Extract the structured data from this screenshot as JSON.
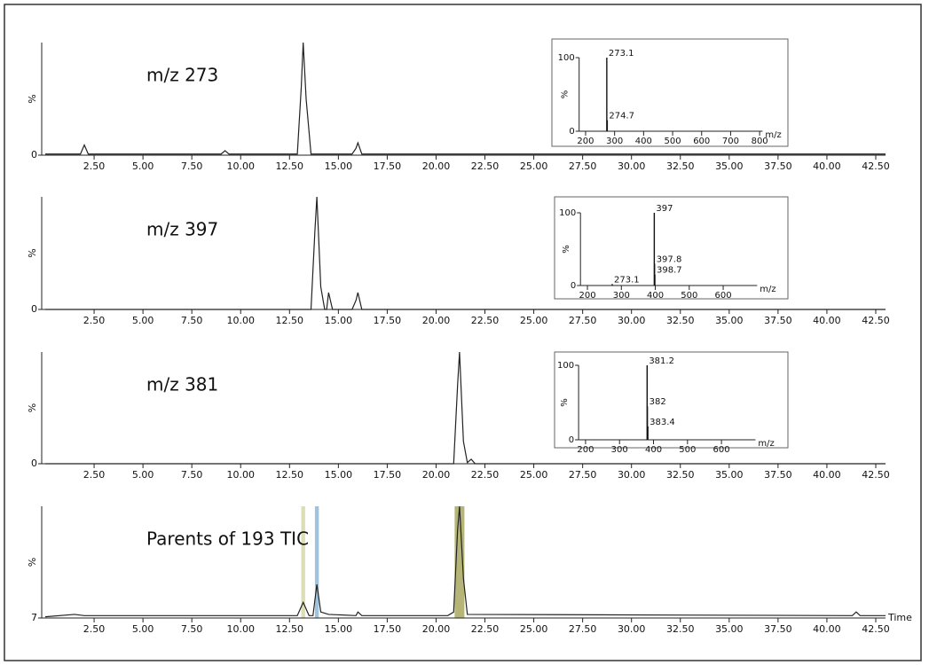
{
  "chart_data": [
    {
      "type": "line",
      "title": "m/z 273",
      "ylabel": "%",
      "color": "#222",
      "x": [
        0,
        1.8,
        2.0,
        2.2,
        9.0,
        9.2,
        9.4,
        12.9,
        13.1,
        13.2,
        13.35,
        13.6,
        15.7,
        15.9,
        16.0,
        16.2,
        43
      ],
      "values": [
        1,
        1,
        9,
        1,
        1,
        4,
        1,
        1,
        60,
        100,
        50,
        1,
        1,
        6,
        11,
        1,
        1
      ],
      "xlim": [
        0,
        43
      ],
      "ylim": [
        0,
        100
      ],
      "yticks": [
        0
      ],
      "xticks": [
        {
          "value": 2.5,
          "label": "2.50"
        },
        {
          "value": 5,
          "label": "5.00"
        },
        {
          "value": 7.5,
          "label": "7.50"
        },
        {
          "value": 10,
          "label": "10.00"
        },
        {
          "value": 12.5,
          "label": "12.50"
        },
        {
          "value": 15,
          "label": "15.00"
        },
        {
          "value": 17.5,
          "label": "17.50"
        },
        {
          "value": 20,
          "label": "20.00"
        },
        {
          "value": 22.5,
          "label": "22.50"
        },
        {
          "value": 25,
          "label": "25.00"
        },
        {
          "value": 27.5,
          "label": "27.50"
        },
        {
          "value": 30,
          "label": "30.00"
        },
        {
          "value": 32.5,
          "label": "32.50"
        },
        {
          "value": 35,
          "label": "35.00"
        },
        {
          "value": 37.5,
          "label": "37.50"
        },
        {
          "value": 40,
          "label": "40.00"
        },
        {
          "value": 42.5,
          "label": "42.50"
        }
      ]
    },
    {
      "type": "line",
      "title": "m/z 397",
      "ylabel": "%",
      "color": "#222",
      "x": [
        0,
        13.6,
        13.8,
        13.9,
        14.1,
        14.3,
        14.4,
        14.5,
        14.7,
        15.7,
        15.9,
        16.0,
        16.2,
        43
      ],
      "values": [
        0,
        0,
        70,
        100,
        20,
        0,
        0,
        15,
        0,
        0,
        8,
        15,
        0,
        0
      ],
      "xlim": [
        0,
        43
      ],
      "ylim": [
        0,
        100
      ],
      "yticks": [
        0
      ],
      "xticks": [
        {
          "value": 2.5,
          "label": "2.50"
        },
        {
          "value": 5,
          "label": "5.00"
        },
        {
          "value": 7.5,
          "label": "7.50"
        },
        {
          "value": 10,
          "label": "10.00"
        },
        {
          "value": 12.5,
          "label": "12.50"
        },
        {
          "value": 15,
          "label": "15.00"
        },
        {
          "value": 17.5,
          "label": "17.50"
        },
        {
          "value": 20,
          "label": "20.00"
        },
        {
          "value": 22.5,
          "label": "22.50"
        },
        {
          "value": 25,
          "label": "25.00"
        },
        {
          "value": 27.5,
          "label": "27.50"
        },
        {
          "value": 30,
          "label": "30.00"
        },
        {
          "value": 32.5,
          "label": "32.50"
        },
        {
          "value": 35,
          "label": "35.00"
        },
        {
          "value": 37.5,
          "label": "37.50"
        },
        {
          "value": 40,
          "label": "40.00"
        },
        {
          "value": 42.5,
          "label": "42.50"
        }
      ]
    },
    {
      "type": "line",
      "title": "m/z 381",
      "ylabel": "%",
      "color": "#222",
      "x": [
        0,
        20.9,
        21.1,
        21.2,
        21.4,
        21.6,
        21.8,
        22.0,
        43
      ],
      "values": [
        0,
        0,
        70,
        100,
        20,
        1,
        4,
        0,
        0
      ],
      "xlim": [
        0,
        43
      ],
      "ylim": [
        0,
        100
      ],
      "yticks": [
        0
      ],
      "xticks": [
        {
          "value": 2.5,
          "label": "2.50"
        },
        {
          "value": 5,
          "label": "5.00"
        },
        {
          "value": 7.5,
          "label": "7.50"
        },
        {
          "value": 10,
          "label": "10.00"
        },
        {
          "value": 12.5,
          "label": "12.50"
        },
        {
          "value": 15,
          "label": "15.00"
        },
        {
          "value": 17.5,
          "label": "17.50"
        },
        {
          "value": 20,
          "label": "20.00"
        },
        {
          "value": 22.5,
          "label": "22.50"
        },
        {
          "value": 25,
          "label": "25.00"
        },
        {
          "value": 27.5,
          "label": "27.50"
        },
        {
          "value": 30,
          "label": "30.00"
        },
        {
          "value": 32.5,
          "label": "32.50"
        },
        {
          "value": 35,
          "label": "35.00"
        },
        {
          "value": 37.5,
          "label": "37.50"
        },
        {
          "value": 40,
          "label": "40.00"
        },
        {
          "value": 42.5,
          "label": "42.50"
        }
      ]
    },
    {
      "type": "line",
      "title": "Parents of 193 TIC",
      "ylabel": "%",
      "xlabel": "Time",
      "color": "#222",
      "x": [
        0,
        1.5,
        2.0,
        12.9,
        13.2,
        13.5,
        13.7,
        13.9,
        14.1,
        14.5,
        15.9,
        16.0,
        16.2,
        20.6,
        20.9,
        21.1,
        21.2,
        21.4,
        21.6,
        41.3,
        41.5,
        41.7,
        43
      ],
      "values": [
        8,
        10,
        9,
        9,
        20,
        9,
        9,
        35,
        12,
        10,
        9,
        12,
        9,
        9,
        12,
        80,
        100,
        40,
        10,
        9,
        12,
        9,
        9
      ],
      "highlights": [
        {
          "from": 13.1,
          "to": 13.3,
          "color": "#d8d8a8"
        },
        {
          "from": 13.8,
          "to": 14.0,
          "color": "#8fbad8"
        },
        {
          "from": 20.95,
          "to": 21.45,
          "color": "#a8a860"
        }
      ],
      "xlim": [
        0,
        43
      ],
      "ylim": [
        7,
        100
      ],
      "yticks": [
        7
      ],
      "xticks": [
        {
          "value": 2.5,
          "label": "2.50"
        },
        {
          "value": 5,
          "label": "5.00"
        },
        {
          "value": 7.5,
          "label": "7.50"
        },
        {
          "value": 10,
          "label": "10.00"
        },
        {
          "value": 12.5,
          "label": "12.50"
        },
        {
          "value": 15,
          "label": "15.00"
        },
        {
          "value": 17.5,
          "label": "17.50"
        },
        {
          "value": 20,
          "label": "20.00"
        },
        {
          "value": 22.5,
          "label": "22.50"
        },
        {
          "value": 25,
          "label": "25.00"
        },
        {
          "value": 27.5,
          "label": "27.50"
        },
        {
          "value": 30,
          "label": "30.00"
        },
        {
          "value": 32.5,
          "label": "32.50"
        },
        {
          "value": 35,
          "label": "35.00"
        },
        {
          "value": 37.5,
          "label": "37.50"
        },
        {
          "value": 40,
          "label": "40.00"
        },
        {
          "value": 42.5,
          "label": "42.50"
        }
      ]
    },
    {
      "type": "stem",
      "ylabel": "%",
      "xlabel": "m/z",
      "color": "#111",
      "x": [
        273.1,
        274.7
      ],
      "values": [
        100,
        15
      ],
      "xlim": [
        190,
        810
      ],
      "ylim": [
        0,
        100
      ],
      "yticks": [
        0,
        100
      ],
      "xticks": [
        200,
        300,
        400,
        500,
        600,
        700,
        800
      ]
    },
    {
      "type": "stem",
      "ylabel": "%",
      "xlabel": "m/z",
      "color": "#111",
      "x": [
        273.1,
        397.0,
        397.8,
        398.7
      ],
      "values": [
        2,
        100,
        30,
        15
      ],
      "xlim": [
        190,
        700
      ],
      "ylim": [
        0,
        100
      ],
      "yticks": [
        0,
        100
      ],
      "xticks": [
        200,
        300,
        400,
        500,
        600
      ]
    },
    {
      "type": "stem",
      "ylabel": "%",
      "xlabel": "m/z",
      "color": "#111",
      "x": [
        381.2,
        382.0,
        383.4
      ],
      "values": [
        100,
        45,
        18
      ],
      "xlim": [
        190,
        700
      ],
      "ylim": [
        0,
        100
      ],
      "yticks": [
        0,
        100
      ],
      "xticks": [
        200,
        300,
        400,
        500,
        600
      ]
    }
  ]
}
